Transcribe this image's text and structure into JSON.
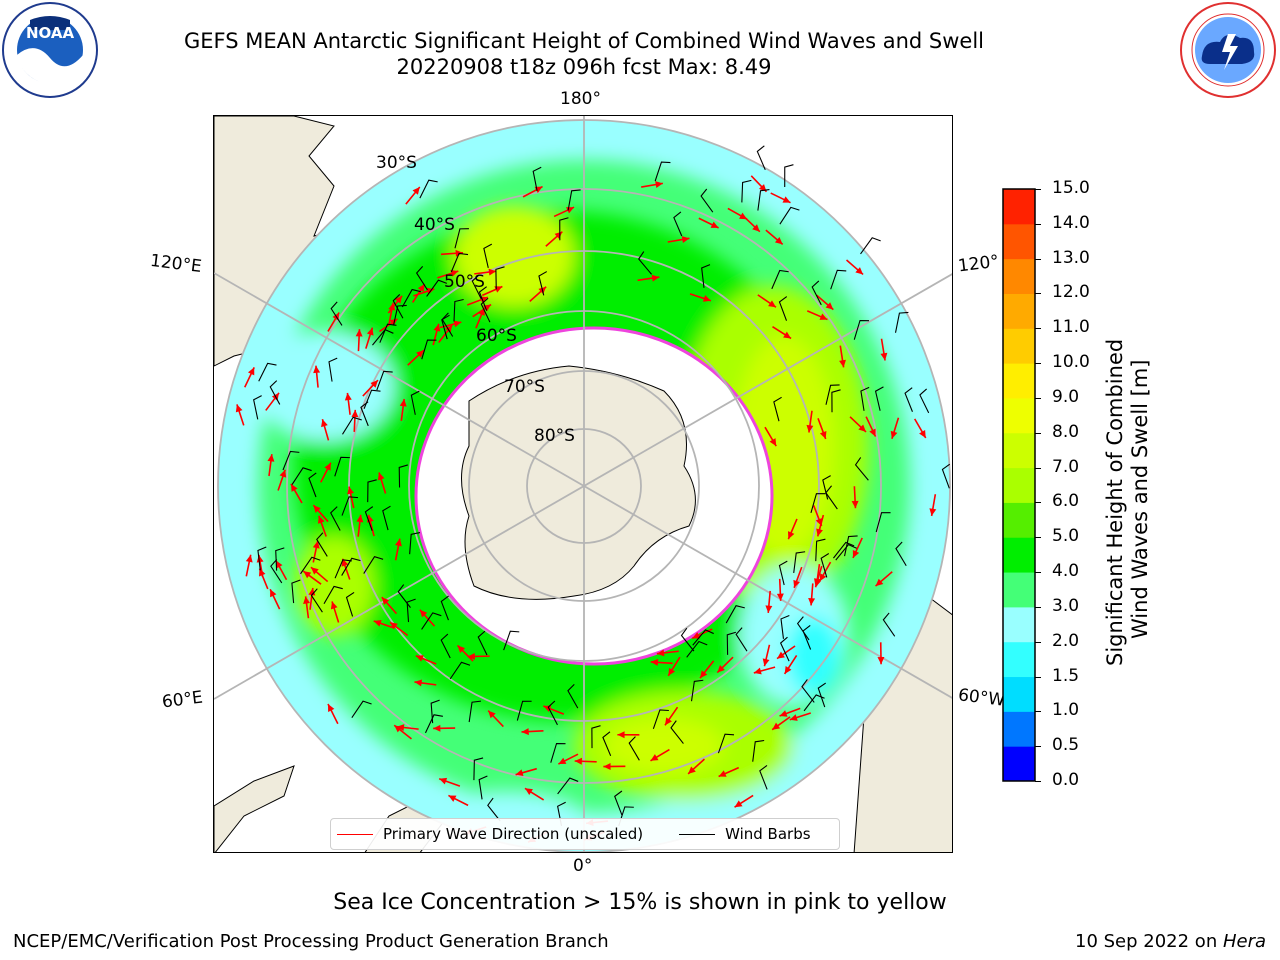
{
  "title": {
    "line1": "GEFS MEAN Antarctic Significant Height of Combined Wind Waves and Swell",
    "line2": "20220908 t18z 096h fcst   Max: 8.49"
  },
  "map": {
    "projection": "south-polar-stereographic",
    "lon_labels": {
      "top": "180°",
      "bottom": "0°",
      "upper_left": "120°E",
      "upper_right": "120°",
      "lower_left": "60°E",
      "lower_right": "60°W"
    },
    "lat_labels": [
      "30°S",
      "40°S",
      "50°S",
      "60°S",
      "70°S",
      "80°S"
    ],
    "colors": {
      "land": "#efebdc",
      "ice_edge": "#ee44dd",
      "wave_arrow": "#ff0000",
      "wind_barb": "#000000",
      "grid": "#b5b5b5"
    }
  },
  "legend": {
    "wave_label": "Primary Wave Direction (unscaled)",
    "barb_label": "Wind Barbs"
  },
  "colorbar": {
    "label_line1": "Significant Height of Combined",
    "label_line2": "Wind Waves and Swell [m]",
    "ticks": [
      "0.0",
      "0.5",
      "1.0",
      "1.5",
      "2.0",
      "3.0",
      "4.0",
      "5.0",
      "6.0",
      "7.0",
      "8.0",
      "9.0",
      "10.0",
      "11.0",
      "12.0",
      "13.0",
      "14.0",
      "15.0"
    ],
    "colors": [
      "#0000ff",
      "#0077ff",
      "#00ddff",
      "#33ffff",
      "#99ffff",
      "#44ff77",
      "#00ee00",
      "#55ee00",
      "#aaff00",
      "#ccff00",
      "#eeff00",
      "#ffee00",
      "#ffcc00",
      "#ffaa00",
      "#ff8800",
      "#ff5500",
      "#ff2200"
    ]
  },
  "notes": {
    "sea_ice": "Sea Ice Concentration > 15% is shown in pink to yellow",
    "branch": "NCEP/EMC/Verification Post Processing Product Generation Branch",
    "date": "10 Sep 2022 on ",
    "machine": "Hera"
  },
  "logos": {
    "left_text": "NOAA",
    "left_ring": "NATIONAL OCEANIC AND ATMOSPHERIC ADMINISTRATION · U.S. DEPARTMENT OF COMMERCE",
    "right_ring": "NATIONAL WEATHER SERVICE"
  }
}
